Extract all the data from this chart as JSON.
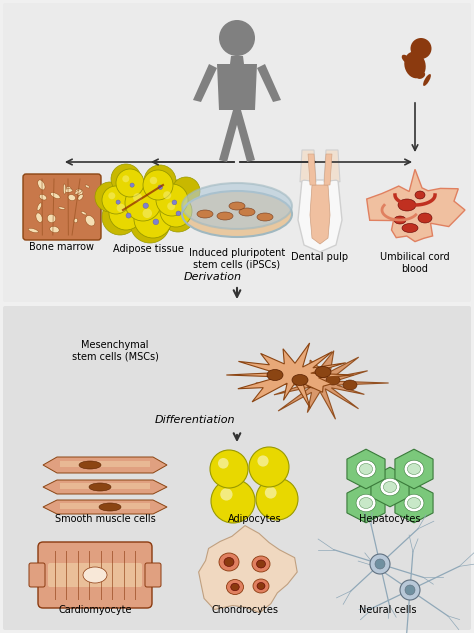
{
  "bg_color": "#e8e8e8",
  "fig_bg": "#f0f0f0",
  "top_section_labels": [
    "Bone marrow",
    "Adipose tissue",
    "Induced pluripotent\nstem cells (iPSCs)",
    "Dental pulp",
    "Umbilical cord\nblood"
  ],
  "derivation_label": "Derivation",
  "msc_label": "Mesenchymal\nstem cells (MSCs)",
  "differentiation_label": "Differentiation",
  "bottom_labels": [
    "Smooth muscle cells",
    "Adipocytes",
    "Hepatocytes",
    "Cardiomyocyte",
    "Chondrocytes",
    "Neural cells"
  ],
  "arrow_color": "#333333",
  "label_fontsize": 7.0,
  "section_label_fontsize": 8.0,
  "human_color": "#808080",
  "fetus_color": "#8B3A0F",
  "bone_color": "#C8784A",
  "bone_dark": "#8B4513",
  "bone_hole": "#F5DEB3",
  "adipose_yellow": "#E8D800",
  "adipose_outline": "#999900",
  "adipose_red": "#8B2000",
  "ipsc_dish_fill": "#E8C8A0",
  "ipsc_dish_rim": "#b0c8d8",
  "ipsc_cell_color": "#C87030",
  "dental_white": "#F8F8F8",
  "dental_pink": "#F0C0A0",
  "dental_outline": "#D0D0D0",
  "umbilical_outer": "#E08060",
  "umbilical_inner": "#C03020",
  "umbilical_bg": "#F0C0A0",
  "msc_color": "#E8A878",
  "msc_dark": "#8B4513",
  "smooth_color": "#E0A080",
  "smooth_dark": "#8B4513",
  "smooth_light": "#F5DEB3",
  "adipocyte_color": "#E8D800",
  "adipocyte_outline": "#999900",
  "hepatocyte_color": "#7BC87B",
  "hepatocyte_dark": "#3A7A3A",
  "hepatocyte_inner": "#C8E8C8",
  "cardio_color": "#E0A080",
  "cardio_dark": "#8B3A0F",
  "cardio_light": "#F5DEB3",
  "chondro_outer": "#F0D8C0",
  "chondro_inner": "#E08060",
  "chondro_nuc": "#8B3A0F",
  "neural_line": "#90A8B8",
  "neural_soma": "#B8C8D8",
  "neural_dark": "#607080"
}
